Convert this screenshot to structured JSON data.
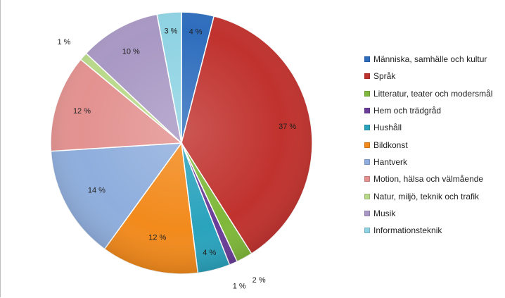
{
  "chart_data": {
    "type": "pie",
    "title": "",
    "series": [
      {
        "label": "Människa, samhälle och kultur",
        "value": 4,
        "display": "4 %",
        "color": "#2e6dbd"
      },
      {
        "label": "Språk",
        "value": 37,
        "display": "37 %",
        "color": "#c0322e"
      },
      {
        "label": "Litteratur, teater och modersmål",
        "value": 2,
        "display": "2 %",
        "color": "#7fb83a"
      },
      {
        "label": "Hem och trädgråd",
        "value": 1,
        "display": "1 %",
        "color": "#6a3d98"
      },
      {
        "label": "Hushåll",
        "value": 4,
        "display": "4 %",
        "color": "#2aa3bd"
      },
      {
        "label": "Bildkonst",
        "value": 12,
        "display": "12 %",
        "color": "#f28a1c"
      },
      {
        "label": "Hantverk",
        "value": 14,
        "display": "14 %",
        "color": "#8faedd"
      },
      {
        "label": "Motion, hälsa och välmående",
        "value": 12,
        "display": "12 %",
        "color": "#e39290"
      },
      {
        "label": "Natur, miljö, teknik och trafik",
        "value": 1,
        "display": "1 %",
        "color": "#b9d98a"
      },
      {
        "label": "Musik",
        "value": 10,
        "display": "10 %",
        "color": "#a898c4"
      },
      {
        "label": "Informationsteknik",
        "value": 3,
        "display": "3 %",
        "color": "#8fd3e3"
      }
    ],
    "legend_position": "right"
  }
}
